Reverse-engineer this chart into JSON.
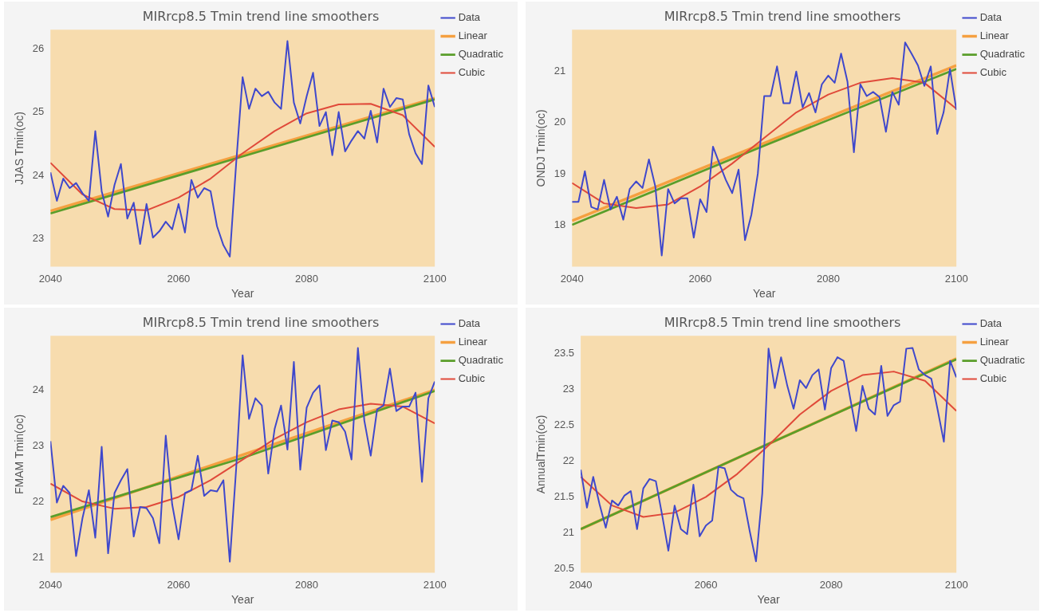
{
  "chart_data": [
    {
      "type": "line",
      "title": "MIRrcp8.5 Tmin trend line smoothers",
      "xlabel": "Year",
      "ylabel": "JJAS Tmin(oc)",
      "legend": "top right",
      "xlim": [
        2040,
        2100
      ],
      "xticks": [
        2040,
        2060,
        2080,
        2100
      ],
      "ylim": [
        22.56,
        26.3
      ],
      "yticks": [
        23,
        24,
        25,
        26
      ],
      "x": [
        2040,
        2041,
        2042,
        2043,
        2044,
        2045,
        2046,
        2047,
        2048,
        2049,
        2050,
        2051,
        2052,
        2053,
        2054,
        2055,
        2056,
        2057,
        2058,
        2059,
        2060,
        2061,
        2062,
        2063,
        2064,
        2065,
        2066,
        2067,
        2068,
        2069,
        2070,
        2071,
        2072,
        2073,
        2074,
        2075,
        2076,
        2077,
        2078,
        2079,
        2080,
        2081,
        2082,
        2083,
        2084,
        2085,
        2086,
        2087,
        2088,
        2089,
        2090,
        2091,
        2092,
        2093,
        2094,
        2095,
        2096,
        2097,
        2098,
        2099,
        2100
      ],
      "series": [
        {
          "name": "Data",
          "color": "#3f48cc",
          "values": [
            24.05,
            23.6,
            23.95,
            23.8,
            23.88,
            23.72,
            23.6,
            24.7,
            23.75,
            23.35,
            23.85,
            24.18,
            23.32,
            23.57,
            22.92,
            23.55,
            23.02,
            23.12,
            23.27,
            23.15,
            23.55,
            23.1,
            23.93,
            23.65,
            23.8,
            23.75,
            23.2,
            22.9,
            22.72,
            24.2,
            25.55,
            25.05,
            25.37,
            25.25,
            25.32,
            25.15,
            25.05,
            26.12,
            25.15,
            24.82,
            25.25,
            25.62,
            24.78,
            25.0,
            24.32,
            25.0,
            24.38,
            24.55,
            24.7,
            24.58,
            25.02,
            24.52,
            25.37,
            25.08,
            25.22,
            25.2,
            24.65,
            24.35,
            24.18,
            25.42,
            25.08
          ]
        },
        {
          "name": "Linear",
          "color": "#f5a040",
          "x": [
            2040,
            2100
          ],
          "values": [
            23.44,
            25.22
          ]
        },
        {
          "name": "Quadratic",
          "color": "#5a9e2a",
          "x": [
            2040,
            2070,
            2100
          ],
          "values": [
            23.4,
            24.3,
            25.2
          ]
        },
        {
          "name": "Cubic",
          "color": "#e04a3a",
          "x": [
            2040,
            2045,
            2050,
            2055,
            2060,
            2065,
            2070,
            2075,
            2080,
            2085,
            2090,
            2095,
            2100
          ],
          "values": [
            24.2,
            23.7,
            23.47,
            23.45,
            23.65,
            23.95,
            24.35,
            24.7,
            24.98,
            25.12,
            25.13,
            24.95,
            24.45
          ]
        }
      ]
    },
    {
      "type": "line",
      "title": "MIRrcp8.5 Tmin trend line smoothers",
      "xlabel": "Year",
      "ylabel": "ONDJ Tmin(oc)",
      "legend": "top right",
      "xlim": [
        2040,
        2100
      ],
      "xticks": [
        2040,
        2060,
        2080,
        2100
      ],
      "ylim": [
        17.18,
        21.82
      ],
      "yticks": [
        18,
        19,
        20,
        21
      ],
      "x": [
        2040,
        2041,
        2042,
        2043,
        2044,
        2045,
        2046,
        2047,
        2048,
        2049,
        2050,
        2051,
        2052,
        2053,
        2054,
        2055,
        2056,
        2057,
        2058,
        2059,
        2060,
        2061,
        2062,
        2063,
        2064,
        2065,
        2066,
        2067,
        2068,
        2069,
        2070,
        2071,
        2072,
        2073,
        2074,
        2075,
        2076,
        2077,
        2078,
        2079,
        2080,
        2081,
        2082,
        2083,
        2084,
        2085,
        2086,
        2087,
        2088,
        2089,
        2090,
        2091,
        2092,
        2093,
        2094,
        2095,
        2096,
        2097,
        2098,
        2099,
        2100
      ],
      "series": [
        {
          "name": "Data",
          "color": "#3f48cc",
          "values": [
            18.45,
            18.45,
            19.05,
            18.35,
            18.3,
            18.88,
            18.3,
            18.55,
            18.1,
            18.7,
            18.85,
            18.72,
            19.28,
            18.75,
            17.4,
            18.7,
            18.42,
            18.52,
            18.52,
            17.75,
            18.5,
            18.25,
            19.53,
            19.2,
            18.88,
            18.62,
            19.08,
            17.7,
            18.2,
            19.0,
            20.52,
            20.52,
            21.1,
            20.38,
            20.38,
            21.0,
            20.3,
            20.58,
            20.2,
            20.75,
            20.92,
            20.78,
            21.35,
            20.8,
            19.42,
            20.75,
            20.52,
            20.6,
            20.5,
            19.82,
            20.6,
            20.35,
            21.57,
            21.35,
            21.12,
            20.72,
            21.1,
            19.78,
            20.2,
            21.05,
            20.25
          ]
        },
        {
          "name": "Linear",
          "color": "#f5a040",
          "x": [
            2040,
            2100
          ],
          "values": [
            18.08,
            21.12
          ]
        },
        {
          "name": "Quadratic",
          "color": "#5a9e2a",
          "x": [
            2040,
            2070,
            2100
          ],
          "values": [
            18.0,
            19.55,
            21.05
          ]
        },
        {
          "name": "Cubic",
          "color": "#e04a3a",
          "x": [
            2040,
            2045,
            2050,
            2055,
            2060,
            2065,
            2070,
            2075,
            2080,
            2085,
            2090,
            2095,
            2100
          ],
          "values": [
            18.82,
            18.42,
            18.33,
            18.4,
            18.75,
            19.2,
            19.7,
            20.2,
            20.55,
            20.78,
            20.87,
            20.78,
            20.27
          ]
        }
      ]
    },
    {
      "type": "line",
      "title": "MIRrcp8.5 Tmin trend line smoothers",
      "xlabel": "Year",
      "ylabel": "FMAM Tmin(oc)",
      "legend": "top right",
      "xlim": [
        2040,
        2100
      ],
      "xticks": [
        2040,
        2060,
        2080,
        2100
      ],
      "ylim": [
        20.72,
        24.97
      ],
      "yticks": [
        21,
        22,
        23,
        24
      ],
      "x": [
        2040,
        2041,
        2042,
        2043,
        2044,
        2045,
        2046,
        2047,
        2048,
        2049,
        2050,
        2051,
        2052,
        2053,
        2054,
        2055,
        2056,
        2057,
        2058,
        2059,
        2060,
        2061,
        2062,
        2063,
        2064,
        2065,
        2066,
        2067,
        2068,
        2069,
        2070,
        2071,
        2072,
        2073,
        2074,
        2075,
        2076,
        2077,
        2078,
        2079,
        2080,
        2081,
        2082,
        2083,
        2084,
        2085,
        2086,
        2087,
        2088,
        2089,
        2090,
        2091,
        2092,
        2093,
        2094,
        2095,
        2096,
        2097,
        2098,
        2099,
        2100
      ],
      "series": [
        {
          "name": "Data",
          "color": "#3f48cc",
          "values": [
            23.08,
            21.98,
            22.28,
            22.15,
            21.02,
            21.7,
            22.2,
            21.35,
            22.98,
            21.07,
            22.15,
            22.38,
            22.58,
            21.37,
            21.9,
            21.88,
            21.7,
            21.25,
            23.18,
            21.95,
            21.32,
            22.15,
            22.2,
            22.82,
            22.1,
            22.2,
            22.18,
            22.38,
            20.92,
            22.6,
            24.62,
            23.48,
            23.85,
            23.72,
            22.5,
            23.3,
            23.72,
            22.93,
            24.5,
            22.57,
            23.68,
            23.95,
            24.08,
            22.92,
            23.45,
            23.42,
            23.25,
            22.75,
            24.75,
            23.45,
            22.82,
            23.65,
            23.72,
            24.38,
            23.62,
            23.7,
            23.7,
            23.95,
            22.35,
            23.85,
            24.15
          ]
        },
        {
          "name": "Linear",
          "color": "#f5a040",
          "x": [
            2040,
            2100
          ],
          "values": [
            21.67,
            24.0
          ]
        },
        {
          "name": "Quadratic",
          "color": "#5a9e2a",
          "x": [
            2040,
            2070,
            2100
          ],
          "values": [
            21.72,
            22.78,
            23.98
          ]
        },
        {
          "name": "Cubic",
          "color": "#e04a3a",
          "x": [
            2040,
            2045,
            2050,
            2055,
            2060,
            2065,
            2070,
            2075,
            2080,
            2085,
            2090,
            2095,
            2100
          ],
          "values": [
            22.32,
            22.0,
            21.87,
            21.9,
            22.08,
            22.38,
            22.75,
            23.12,
            23.42,
            23.65,
            23.75,
            23.7,
            23.4
          ]
        }
      ]
    },
    {
      "type": "line",
      "title": "MIRrcp8.5 Tmin trend line smoothers",
      "xlabel": "Year",
      "ylabel": "AnnualTmin(oc)",
      "legend": "top right",
      "xlim": [
        2040,
        2100
      ],
      "xticks": [
        2040,
        2060,
        2080,
        2100
      ],
      "ylim": [
        20.44,
        23.75
      ],
      "yticks": [
        20.5,
        21,
        21.5,
        22,
        22.5,
        23,
        23.5
      ],
      "x": [
        2040,
        2041,
        2042,
        2043,
        2044,
        2045,
        2046,
        2047,
        2048,
        2049,
        2050,
        2051,
        2052,
        2053,
        2054,
        2055,
        2056,
        2057,
        2058,
        2059,
        2060,
        2061,
        2062,
        2063,
        2064,
        2065,
        2066,
        2067,
        2068,
        2069,
        2070,
        2071,
        2072,
        2073,
        2074,
        2075,
        2076,
        2077,
        2078,
        2079,
        2080,
        2081,
        2082,
        2083,
        2084,
        2085,
        2086,
        2087,
        2088,
        2089,
        2090,
        2091,
        2092,
        2093,
        2094,
        2095,
        2096,
        2097,
        2098,
        2099,
        2100
      ],
      "series": [
        {
          "name": "Data",
          "color": "#3f48cc",
          "values": [
            21.88,
            21.35,
            21.78,
            21.4,
            21.07,
            21.45,
            21.38,
            21.52,
            21.58,
            21.05,
            21.62,
            21.75,
            21.72,
            21.25,
            20.75,
            21.38,
            21.05,
            20.98,
            21.67,
            20.95,
            21.1,
            21.17,
            21.92,
            21.9,
            21.6,
            21.52,
            21.48,
            21.02,
            20.6,
            21.55,
            23.57,
            23.02,
            23.45,
            23.05,
            22.73,
            23.13,
            23.02,
            23.2,
            23.28,
            22.72,
            23.3,
            23.45,
            23.4,
            22.9,
            22.42,
            23.05,
            22.73,
            22.65,
            23.33,
            22.63,
            22.78,
            22.83,
            23.57,
            23.58,
            23.28,
            23.2,
            23.15,
            22.72,
            22.27,
            23.4,
            23.17
          ]
        },
        {
          "name": "Linear",
          "color": "#f5a040",
          "x": [
            2040,
            2100
          ],
          "values": [
            21.05,
            23.43
          ]
        },
        {
          "name": "Quadratic",
          "color": "#5a9e2a",
          "x": [
            2040,
            2070,
            2100
          ],
          "values": [
            21.05,
            22.24,
            23.42
          ]
        },
        {
          "name": "Cubic",
          "color": "#e04a3a",
          "x": [
            2040,
            2045,
            2050,
            2055,
            2060,
            2065,
            2070,
            2075,
            2080,
            2085,
            2090,
            2095,
            2100
          ],
          "values": [
            21.78,
            21.38,
            21.22,
            21.28,
            21.5,
            21.82,
            22.22,
            22.65,
            22.98,
            23.2,
            23.25,
            23.12,
            22.7
          ]
        }
      ]
    }
  ]
}
